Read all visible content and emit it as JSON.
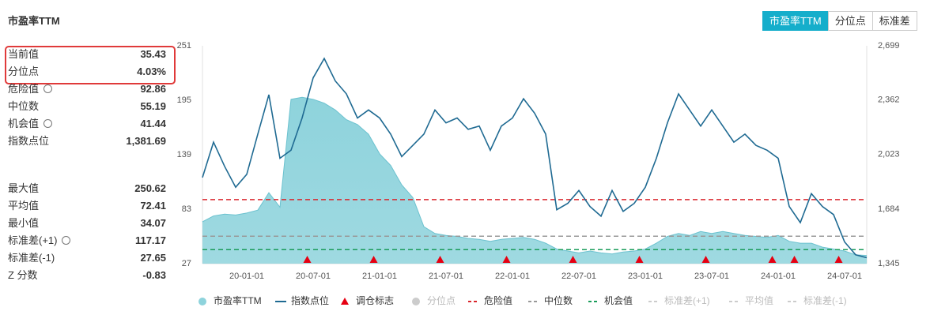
{
  "panel": {
    "title": "市盈率TTM",
    "groups": [
      [
        {
          "label": "当前值",
          "value": "35.43",
          "highlight": true
        },
        {
          "label": "分位点",
          "value": "4.03%",
          "highlight": true
        },
        {
          "label": "危险值",
          "value": "92.86",
          "settings": true
        },
        {
          "label": "中位数",
          "value": "55.19"
        },
        {
          "label": "机会值",
          "value": "41.44",
          "settings": true
        },
        {
          "label": "指数点位",
          "value": "1,381.69"
        }
      ],
      [
        {
          "label": "最大值",
          "value": "250.62"
        },
        {
          "label": "平均值",
          "value": "72.41"
        },
        {
          "label": "最小值",
          "value": "34.07"
        },
        {
          "label": "标准差(+1)",
          "value": "117.17",
          "settings": true
        },
        {
          "label": "标准差(-1)",
          "value": "27.65"
        },
        {
          "label": "Z 分数",
          "value": "-0.83"
        }
      ]
    ]
  },
  "tabs": {
    "items": [
      "市盈率TTM",
      "分位点",
      "标准差"
    ],
    "active": 0
  },
  "chart_data": {
    "type": "area-line",
    "x": [
      "19-09-01",
      "19-10-01",
      "19-11-01",
      "19-12-01",
      "20-01-01",
      "20-02-01",
      "20-03-01",
      "20-04-01",
      "20-05-01",
      "20-06-01",
      "20-07-01",
      "20-08-01",
      "20-09-01",
      "20-10-01",
      "20-11-01",
      "20-12-01",
      "21-01-01",
      "21-02-01",
      "21-03-01",
      "21-04-01",
      "21-05-01",
      "21-06-01",
      "21-07-01",
      "21-08-01",
      "21-09-01",
      "21-10-01",
      "21-11-01",
      "21-12-01",
      "22-01-01",
      "22-02-01",
      "22-03-01",
      "22-04-01",
      "22-05-01",
      "22-06-01",
      "22-07-01",
      "22-08-01",
      "22-09-01",
      "22-10-01",
      "22-11-01",
      "22-12-01",
      "23-01-01",
      "23-02-01",
      "23-03-01",
      "23-04-01",
      "23-05-01",
      "23-06-01",
      "23-07-01",
      "23-08-01",
      "23-09-01",
      "23-10-01",
      "23-11-01",
      "23-12-01",
      "24-01-01",
      "24-02-01",
      "24-03-01",
      "24-04-01",
      "24-05-01",
      "24-06-01",
      "24-07-01",
      "24-08-01",
      "24-09-01"
    ],
    "series": [
      {
        "name": "市盈率TTM",
        "color": "#8ed3dc",
        "values": [
          70,
          76,
          78,
          77,
          79,
          82,
          100,
          85,
          196,
          198,
          196,
          192,
          185,
          175,
          170,
          160,
          140,
          128,
          108,
          95,
          65,
          58,
          56,
          55,
          53,
          52,
          50,
          52,
          53,
          54,
          52,
          48,
          42,
          40,
          38,
          40,
          38,
          37,
          39,
          40,
          42,
          48,
          55,
          58,
          56,
          60,
          58,
          60,
          58,
          56,
          55,
          54,
          56,
          50,
          48,
          48,
          44,
          42,
          40,
          36,
          35.43
        ]
      },
      {
        "name": "指数点位",
        "color": "#1f6a92",
        "axis": "y2",
        "values": [
          1880,
          2100,
          1950,
          1820,
          1900,
          2150,
          2395,
          2000,
          2050,
          2250,
          2500,
          2620,
          2480,
          2400,
          2250,
          2300,
          2250,
          2150,
          2010,
          2080,
          2150,
          2300,
          2220,
          2250,
          2180,
          2200,
          2050,
          2200,
          2250,
          2370,
          2280,
          2150,
          1680,
          1720,
          1800,
          1700,
          1640,
          1800,
          1670,
          1720,
          1820,
          2000,
          2220,
          2400,
          2300,
          2200,
          2300,
          2200,
          2100,
          2150,
          2080,
          2050,
          2000,
          1700,
          1600,
          1780,
          1700,
          1650,
          1480,
          1400,
          1381.69
        ]
      }
    ],
    "markers": {
      "name": "调仓标志",
      "color": "#e60012",
      "x": [
        "20-06-15",
        "20-12-15",
        "21-06-15",
        "21-12-15",
        "22-06-15",
        "22-12-15",
        "23-06-15",
        "23-12-15",
        "24-02-15",
        "24-06-15"
      ]
    },
    "quantile": {
      "name": "分位点",
      "color": "#cccccc",
      "visible": false
    },
    "reference_lines": [
      {
        "name": "危险值",
        "value": 92.86,
        "color": "#d9262c",
        "visible": true
      },
      {
        "name": "中位数",
        "value": 55.19,
        "color": "#999999",
        "visible": true
      },
      {
        "name": "机会值",
        "value": 41.44,
        "color": "#1a9c5a",
        "visible": true
      },
      {
        "name": "标准差(+1)",
        "value": 117.17,
        "color": "#cccccc",
        "visible": false
      },
      {
        "name": "平均值",
        "value": 72.41,
        "color": "#cccccc",
        "visible": false
      },
      {
        "name": "标准差(-1)",
        "value": 27.65,
        "color": "#cccccc",
        "visible": false
      }
    ],
    "xlim": [
      "19-09-01",
      "24-09-01"
    ],
    "xticks": [
      "20-01-01",
      "20-07-01",
      "21-01-01",
      "21-07-01",
      "22-01-01",
      "22-07-01",
      "23-01-01",
      "23-07-01",
      "24-01-01",
      "24-07-01"
    ],
    "ylim": [
      27,
      251
    ],
    "yticks": [
      27,
      83,
      139,
      195,
      251
    ],
    "y2lim": [
      1345,
      2699
    ],
    "y2ticks": [
      {
        "value": 1345,
        "label": "1,345"
      },
      {
        "value": 1684,
        "label": "1,684"
      },
      {
        "value": 2023,
        "label": "2,023"
      },
      {
        "value": 2362,
        "label": "2,362"
      },
      {
        "value": 2699,
        "label": "2,699"
      }
    ]
  }
}
